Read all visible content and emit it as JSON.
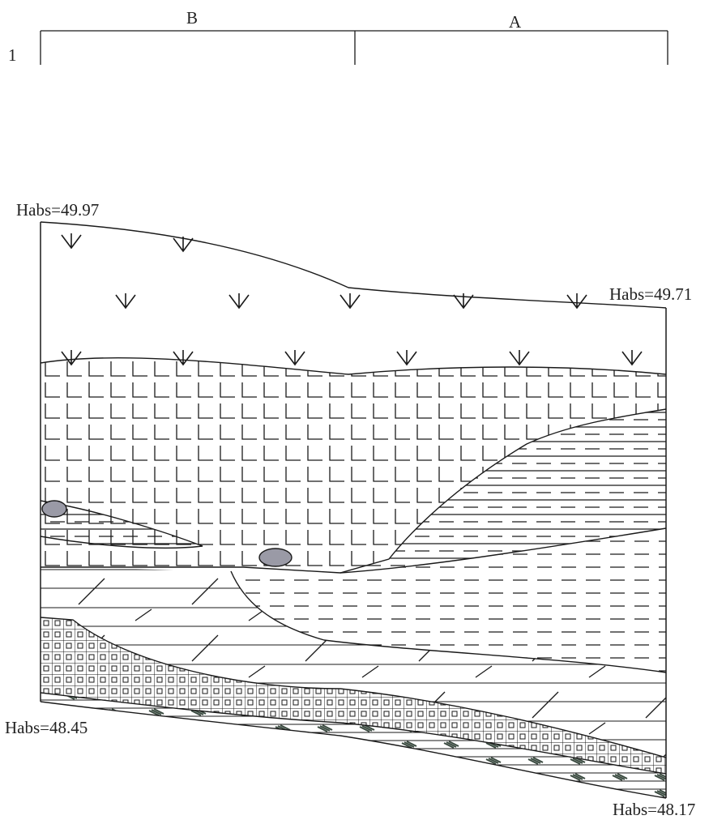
{
  "header": {
    "row_label": "1",
    "section_left": "B",
    "section_right": "A"
  },
  "elevations": {
    "top_left": "Habs=49.97",
    "top_right": "Habs=49.71",
    "bottom_left": "Habs=48.45",
    "bottom_right": "Habs=48.17"
  },
  "colors": {
    "line": "#1a1a1a",
    "pebble_fill": "#9a9aa6",
    "hatch_dark": "#3a4a40"
  }
}
